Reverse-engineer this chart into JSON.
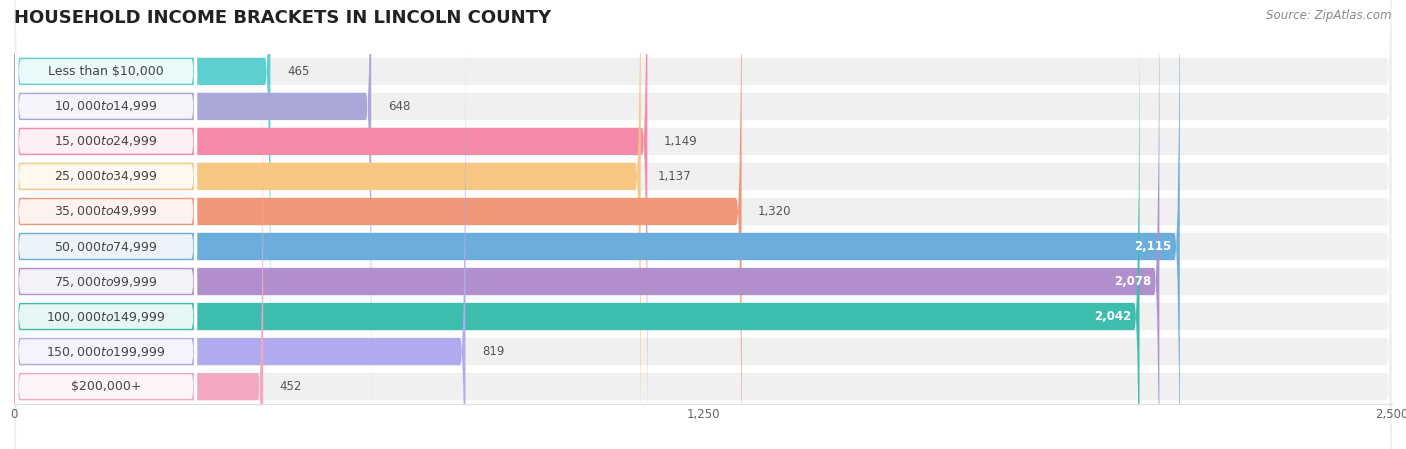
{
  "title": "HOUSEHOLD INCOME BRACKETS IN LINCOLN COUNTY",
  "source": "Source: ZipAtlas.com",
  "categories": [
    "Less than $10,000",
    "$10,000 to $14,999",
    "$15,000 to $24,999",
    "$25,000 to $34,999",
    "$35,000 to $49,999",
    "$50,000 to $74,999",
    "$75,000 to $99,999",
    "$100,000 to $149,999",
    "$150,000 to $199,999",
    "$200,000+"
  ],
  "values": [
    465,
    648,
    1149,
    1137,
    1320,
    2115,
    2078,
    2042,
    819,
    452
  ],
  "bar_colors": [
    "#5ECFCF",
    "#A9A8D9",
    "#F589A8",
    "#F8C882",
    "#F0977A",
    "#6BAEDD",
    "#B08FCC",
    "#3DBDAD",
    "#B0AAEE",
    "#F4A8C0"
  ],
  "xlim": [
    0,
    2500
  ],
  "xticks": [
    0,
    1250,
    2500
  ],
  "background_color": "#ffffff",
  "row_bg_color": "#f0f0f0",
  "title_fontsize": 13,
  "label_fontsize": 9,
  "value_fontsize": 8.5,
  "source_fontsize": 8.5,
  "value_inside_threshold": 1700
}
